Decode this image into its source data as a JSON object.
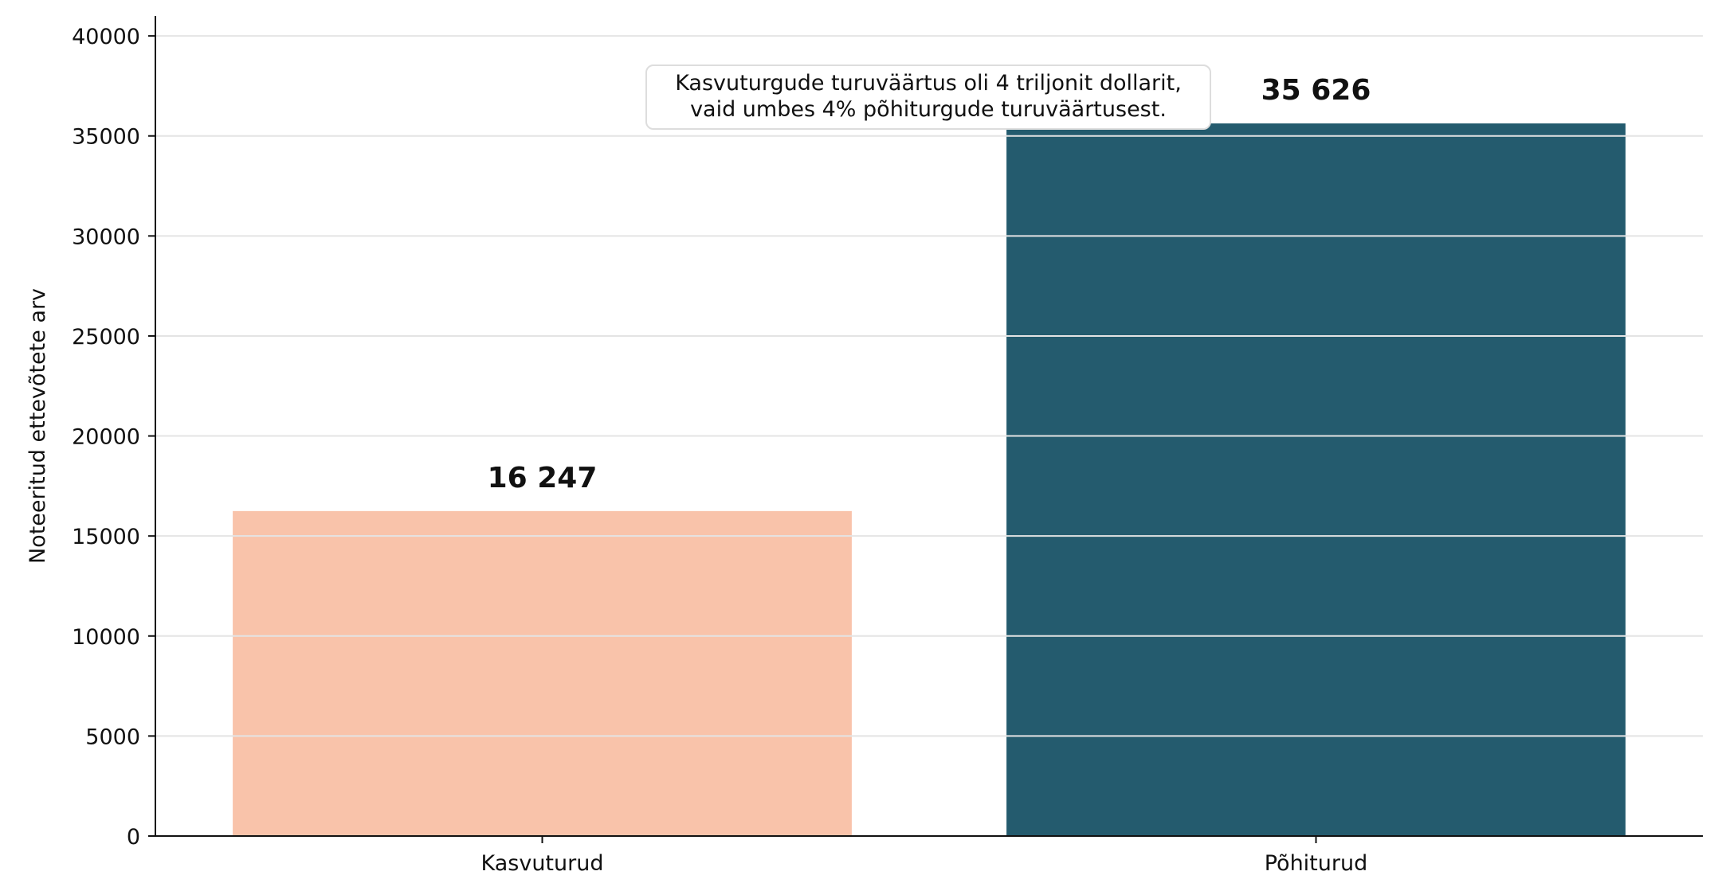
{
  "chart_data": {
    "type": "bar",
    "categories": [
      "Kasvuturud",
      "Põhiturud"
    ],
    "values": [
      16247,
      35626
    ],
    "value_labels": [
      "16 247",
      "35 626"
    ],
    "colors": [
      "#f9c3aa",
      "#245b6e"
    ],
    "ylabel": "Noteeritud ettevõtete arv",
    "xlabel": "",
    "ylim": [
      0,
      41000
    ],
    "yticks": [
      0,
      5000,
      10000,
      15000,
      20000,
      25000,
      30000,
      35000,
      40000
    ],
    "grid": "horizontal",
    "annotation": {
      "lines": [
        "Kasvuturgude turuväärtus oli 4 triljonit dollarit,",
        "vaid umbes 4% põhiturgude turuväärtusest."
      ]
    }
  }
}
